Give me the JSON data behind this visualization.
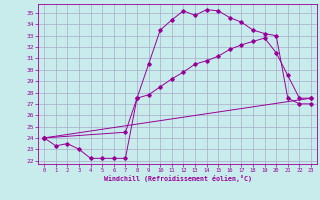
{
  "xlabel": "Windchill (Refroidissement éolien,°C)",
  "bg_color": "#c8ecec",
  "grid_color": "#aaaacc",
  "line_color": "#990099",
  "xlim": [
    -0.5,
    23.5
  ],
  "ylim": [
    21.7,
    35.8
  ],
  "xticks": [
    0,
    1,
    2,
    3,
    4,
    5,
    6,
    7,
    8,
    9,
    10,
    11,
    12,
    13,
    14,
    15,
    16,
    17,
    18,
    19,
    20,
    21,
    22,
    23
  ],
  "yticks": [
    22,
    23,
    24,
    25,
    26,
    27,
    28,
    29,
    30,
    31,
    32,
    33,
    34,
    35
  ],
  "curve1_x": [
    0,
    1,
    2,
    3,
    4,
    5,
    6,
    7,
    8,
    9,
    10,
    11,
    12,
    13,
    14,
    15,
    16,
    17,
    18,
    19,
    20,
    21,
    22,
    23
  ],
  "curve1_y": [
    24.0,
    23.3,
    23.5,
    23.0,
    22.2,
    22.2,
    22.2,
    22.2,
    27.5,
    30.5,
    33.5,
    34.4,
    35.2,
    34.8,
    35.3,
    35.2,
    34.6,
    34.2,
    33.5,
    33.2,
    33.0,
    27.5,
    27.0,
    27.0
  ],
  "curve2_x": [
    0,
    7,
    8,
    9,
    10,
    11,
    12,
    13,
    14,
    15,
    16,
    17,
    18,
    19,
    20,
    21,
    22,
    23
  ],
  "curve2_y": [
    24.0,
    24.5,
    27.5,
    27.8,
    28.5,
    29.2,
    29.8,
    30.5,
    30.8,
    31.2,
    31.8,
    32.2,
    32.5,
    32.8,
    31.5,
    29.5,
    27.5,
    27.5
  ],
  "curve3_x": [
    0,
    23
  ],
  "curve3_y": [
    24.0,
    27.5
  ]
}
